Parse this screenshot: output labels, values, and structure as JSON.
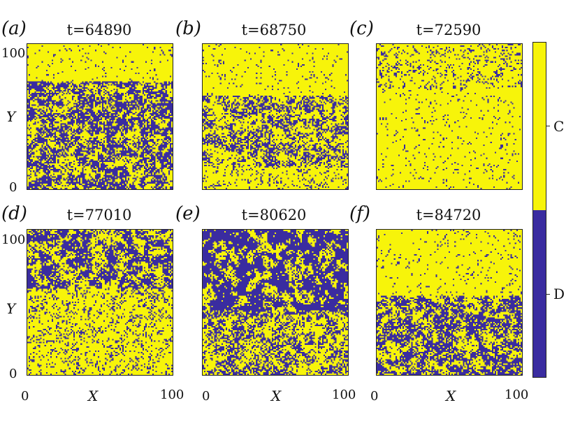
{
  "chart_data": {
    "type": "heatmap",
    "colors": {
      "C": "#f7f40a",
      "D": "#3a2ca0"
    },
    "colorbar": {
      "labels": [
        "C",
        "D"
      ]
    },
    "xlabel": "X",
    "ylabel": "Y",
    "xlim": [
      0,
      100
    ],
    "ylim": [
      0,
      100
    ],
    "xticks": [
      "0",
      "100"
    ],
    "yticks": [
      "0",
      "100"
    ],
    "panels": [
      {
        "label": "(a)",
        "title": "t=64890",
        "defector_fraction": 0.4,
        "pattern": "yellow clusters top, mixed lower"
      },
      {
        "label": "(b)",
        "title": "t=68750",
        "defector_fraction": 0.25,
        "pattern": "yellow top, blue band middle-bottom"
      },
      {
        "label": "(c)",
        "title": "t=72590",
        "defector_fraction": 0.12,
        "pattern": "mostly yellow, sparse blue"
      },
      {
        "label": "(d)",
        "title": "t=77010",
        "defector_fraction": 0.35,
        "pattern": "blue mixed top, yellow bottom center"
      },
      {
        "label": "(e)",
        "title": "t=80620",
        "defector_fraction": 0.45,
        "pattern": "dense blue mixed throughout"
      },
      {
        "label": "(f)",
        "title": "t=84720",
        "defector_fraction": 0.25,
        "pattern": "yellow top, blue bottom band"
      }
    ]
  }
}
